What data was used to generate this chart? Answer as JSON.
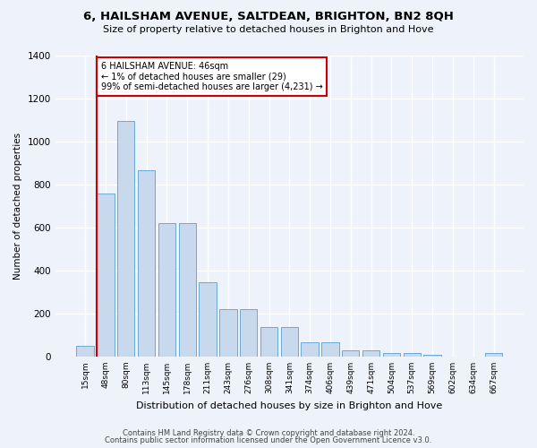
{
  "title": "6, HAILSHAM AVENUE, SALTDEAN, BRIGHTON, BN2 8QH",
  "subtitle": "Size of property relative to detached houses in Brighton and Hove",
  "xlabel": "Distribution of detached houses by size in Brighton and Hove",
  "ylabel": "Number of detached properties",
  "footer1": "Contains HM Land Registry data © Crown copyright and database right 2024.",
  "footer2": "Contains public sector information licensed under the Open Government Licence v3.0.",
  "annotation_line1": "6 HAILSHAM AVENUE: 46sqm",
  "annotation_line2": "← 1% of detached houses are smaller (29)",
  "annotation_line3": "99% of semi-detached houses are larger (4,231) →",
  "categories": [
    "15sqm",
    "48sqm",
    "80sqm",
    "113sqm",
    "145sqm",
    "178sqm",
    "211sqm",
    "243sqm",
    "276sqm",
    "308sqm",
    "341sqm",
    "374sqm",
    "406sqm",
    "439sqm",
    "471sqm",
    "504sqm",
    "537sqm",
    "569sqm",
    "602sqm",
    "634sqm",
    "667sqm"
  ],
  "values": [
    50,
    755,
    1095,
    865,
    618,
    618,
    347,
    222,
    222,
    135,
    135,
    65,
    65,
    30,
    30,
    15,
    15,
    7,
    0,
    0,
    15
  ],
  "bar_color": "#c8d9ee",
  "bar_edge_color": "#6aaad4",
  "vline_color": "#cc0000",
  "annotation_box_color": "#cc0000",
  "background_color": "#eef2fa",
  "grid_color": "#ffffff",
  "ylim": [
    0,
    1400
  ],
  "yticks": [
    0,
    200,
    400,
    600,
    800,
    1000,
    1200,
    1400
  ],
  "vline_pos": 0.57
}
